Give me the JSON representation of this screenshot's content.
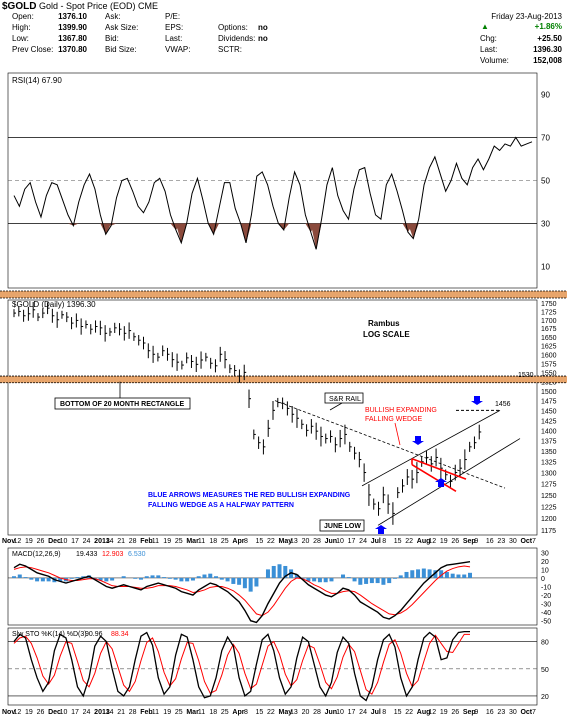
{
  "header": {
    "symbol": "$GOLD",
    "name": "Gold - Spot Price (EOD)",
    "exchange": "CME",
    "date": "Friday 23-Aug-2013",
    "change_pct": "+1.86%",
    "fields": [
      {
        "label": "Open:",
        "value": "1376.10"
      },
      {
        "label": "High:",
        "value": "1399.90"
      },
      {
        "label": "Low:",
        "value": "1367.80"
      },
      {
        "label": "Prev Close:",
        "value": "1370.80"
      }
    ],
    "mid_fields": [
      {
        "label": "Ask:",
        "value": ""
      },
      {
        "label": "Ask Size:",
        "value": ""
      },
      {
        "label": "Bid:",
        "value": ""
      },
      {
        "label": "Bid Size:",
        "value": ""
      }
    ],
    "mid2_fields": [
      {
        "label": "P/E:",
        "value": ""
      },
      {
        "label": "EPS:",
        "value": ""
      },
      {
        "label": "Last:",
        "value": ""
      },
      {
        "label": "VWAP:",
        "value": ""
      }
    ],
    "opt_fields": [
      {
        "label": "Options:",
        "value": "no"
      },
      {
        "label": "Dividends:",
        "value": "no"
      },
      {
        "label": "SCTR:",
        "value": ""
      }
    ],
    "right_fields": [
      {
        "label": "Chg:",
        "value": "+25.50"
      },
      {
        "label": "Last:",
        "value": "1396.30"
      },
      {
        "label": "Volume:",
        "value": "152,008"
      }
    ]
  },
  "chart_data": [
    {
      "type": "line",
      "panel": "rsi",
      "legend": "RSI(14) 67.90",
      "ylim": [
        0,
        100
      ],
      "yticks": [
        10,
        30,
        50,
        70,
        90
      ],
      "x": [
        0,
        2,
        4,
        6,
        8,
        10,
        12,
        14,
        16,
        18,
        20,
        22,
        24,
        26,
        28,
        30,
        32,
        34,
        36,
        38,
        40,
        42,
        44,
        46,
        48,
        50,
        52,
        54,
        56,
        58,
        60,
        62,
        64,
        66,
        68,
        70,
        72,
        74,
        76,
        78,
        80,
        82,
        84,
        86,
        88,
        90,
        92,
        94,
        96,
        98,
        100,
        102,
        104,
        106,
        108,
        110,
        112,
        114,
        116,
        118,
        120,
        122,
        124,
        126,
        128,
        130,
        132,
        134,
        136,
        138,
        140,
        142,
        144,
        146,
        148,
        150,
        152,
        154,
        156,
        158,
        160,
        162,
        164,
        166,
        168,
        170,
        172,
        174,
        176,
        178,
        180,
        182,
        184,
        186,
        188,
        190,
        192
      ],
      "values": [
        43,
        38,
        46,
        49,
        40,
        33,
        43,
        49,
        48,
        41,
        34,
        29,
        40,
        48,
        53,
        46,
        34,
        25,
        29,
        42,
        50,
        51,
        45,
        38,
        35,
        40,
        49,
        51,
        45,
        34,
        27,
        21,
        30,
        44,
        51,
        41,
        30,
        25,
        37,
        49,
        49,
        37,
        30,
        21,
        34,
        52,
        54,
        48,
        38,
        30,
        27,
        42,
        54,
        48,
        34,
        26,
        18,
        32,
        48,
        56,
        43,
        36,
        32,
        46,
        55,
        56,
        44,
        34,
        32,
        48,
        53,
        45,
        36,
        26,
        23,
        32,
        48,
        56,
        61,
        53,
        45,
        50,
        58,
        51,
        48,
        56,
        60,
        55,
        60,
        66,
        64,
        67,
        66,
        70,
        66,
        67,
        68
      ],
      "x_period_days": 2
    },
    {
      "type": "bar",
      "panel": "price",
      "legend": "$GOLD (Daily) 1396.30",
      "title": "Rambus",
      "subtitle": "LOG SCALE",
      "ylim": [
        1165,
        1760
      ],
      "yticks": [
        1175,
        1200,
        1225,
        1250,
        1275,
        1300,
        1325,
        1350,
        1375,
        1400,
        1425,
        1450,
        1475,
        1500,
        1525,
        1550,
        1575,
        1600,
        1625,
        1650,
        1675,
        1700,
        1725,
        1750
      ],
      "xticks": [
        "Nov",
        "12",
        "19",
        "26",
        "Dec",
        "10",
        "17",
        "24",
        "2013",
        "14",
        "21",
        "28",
        "Feb",
        "11",
        "19",
        "25",
        "Mar",
        "11",
        "18",
        "25",
        "Apr",
        "8",
        "15",
        "22",
        "May",
        "13",
        "20",
        "28",
        "Jun",
        "10",
        "17",
        "24",
        "Jul",
        "8",
        "15",
        "22",
        "Aug",
        "12",
        "19",
        "26",
        "Sep",
        "9",
        "16",
        "23",
        "30",
        "Oct",
        "7"
      ],
      "closes": [
        1720,
        1725,
        1712,
        1718,
        1730,
        1708,
        1720,
        1735,
        1712,
        1700,
        1715,
        1708,
        1690,
        1698,
        1680,
        1686,
        1672,
        1680,
        1676,
        1660,
        1664,
        1676,
        1672,
        1660,
        1668,
        1650,
        1640,
        1632,
        1610,
        1600,
        1592,
        1610,
        1600,
        1585,
        1578,
        1570,
        1590,
        1580,
        1572,
        1584,
        1592,
        1575,
        1568,
        1600,
        1585,
        1560,
        1555,
        1540,
        1550,
        1480,
        1390,
        1370,
        1360,
        1405,
        1450,
        1470,
        1468,
        1455,
        1440,
        1430,
        1415,
        1400,
        1410,
        1398,
        1385,
        1380,
        1385,
        1365,
        1380,
        1390,
        1360,
        1345,
        1330,
        1300,
        1250,
        1230,
        1220,
        1250,
        1230,
        1210,
        1255,
        1270,
        1290,
        1285,
        1300,
        1325,
        1335,
        1320,
        1335,
        1310,
        1295,
        1280,
        1300,
        1310,
        1330,
        1360,
        1370,
        1396
      ],
      "annotations": {
        "resistance_label": "1530",
        "rectangle_label": "BOTTOM OF 20 MONTH RECTANGLE",
        "sr_rail": "S&R RAIL",
        "wedge_label_1": "BULLISH EXPANDING",
        "wedge_label_2": "FALLING WEDGE",
        "target": "1456",
        "note_1": "BLUE ARROWS MEASURES THE RED BULLISH EXPANDING",
        "note_2": "FALLING WEDGE AS A HALFWAY PATTERN",
        "june_low": "JUNE LOW"
      }
    },
    {
      "type": "area",
      "panel": "macd",
      "legend_name": "MACD(12,26,9)",
      "legend_values": [
        "19.433",
        "12.903",
        "6.530"
      ],
      "ylim": [
        -55,
        35
      ],
      "yticks": [
        -50,
        -40,
        -30,
        -20,
        -10,
        0,
        10,
        20,
        30
      ],
      "macd": [
        12,
        16,
        14,
        10,
        6,
        4,
        2,
        -2,
        -4,
        -6,
        -4,
        -2,
        0,
        2,
        -2,
        -6,
        -10,
        -12,
        -10,
        -8,
        -10,
        -12,
        -14,
        -10,
        -8,
        -6,
        -8,
        -10,
        -12,
        -16,
        -18,
        -20,
        -14,
        -10,
        -6,
        -8,
        -12,
        -16,
        -22,
        -28,
        -38,
        -50,
        -52,
        -44,
        -30,
        -18,
        -6,
        2,
        6,
        4,
        -2,
        -8,
        -12,
        -16,
        -20,
        -22,
        -18,
        -12,
        -14,
        -20,
        -28,
        -32,
        -36,
        -40,
        -46,
        -48,
        -44,
        -38,
        -30,
        -22,
        -14,
        -6,
        0,
        6,
        12,
        15,
        16,
        17,
        18,
        19
      ],
      "signal": [
        10,
        12,
        13,
        12,
        10,
        8,
        6,
        3,
        0,
        -2,
        -3,
        -3,
        -2,
        -1,
        -1,
        -3,
        -6,
        -9,
        -10,
        -10,
        -10,
        -11,
        -12,
        -12,
        -11,
        -9,
        -9,
        -9,
        -10,
        -12,
        -14,
        -17,
        -16,
        -14,
        -11,
        -10,
        -10,
        -12,
        -15,
        -20,
        -26,
        -34,
        -42,
        -44,
        -40,
        -32,
        -22,
        -12,
        -4,
        0,
        -1,
        -4,
        -8,
        -11,
        -15,
        -18,
        -18,
        -16,
        -15,
        -16,
        -20,
        -25,
        -30,
        -34,
        -38,
        -42,
        -43,
        -41,
        -37,
        -31,
        -24,
        -17,
        -10,
        -3,
        3,
        8,
        11,
        13,
        14,
        13
      ],
      "histogram": [
        2,
        4,
        1,
        -2,
        -4,
        -4,
        -4,
        -5,
        -4,
        -4,
        -1,
        1,
        2,
        3,
        -1,
        -3,
        -4,
        -3,
        0,
        2,
        0,
        -1,
        -2,
        2,
        3,
        3,
        1,
        -1,
        -2,
        -4,
        -4,
        -3,
        2,
        4,
        5,
        2,
        -2,
        -4,
        -7,
        -8,
        -12,
        -16,
        -10,
        0,
        10,
        14,
        16,
        14,
        10,
        4,
        -1,
        -4,
        -4,
        -5,
        -5,
        -4,
        0,
        4,
        1,
        -4,
        -8,
        -7,
        -6,
        -6,
        -8,
        -6,
        -1,
        3,
        7,
        9,
        10,
        11,
        10,
        9,
        9,
        7,
        5,
        4,
        4,
        6
      ]
    },
    {
      "type": "line",
      "panel": "slow_sto",
      "legend_name": "Slw STO %K(14) %D(3)",
      "legend_values": [
        "90.96",
        "88.34"
      ],
      "ylim": [
        10,
        95
      ],
      "yticks": [
        20,
        50,
        80
      ],
      "k": [
        80,
        88,
        84,
        60,
        40,
        25,
        35,
        70,
        88,
        84,
        60,
        30,
        20,
        40,
        75,
        86,
        80,
        50,
        25,
        20,
        30,
        60,
        86,
        90,
        76,
        40,
        22,
        30,
        65,
        88,
        85,
        60,
        30,
        18,
        20,
        40,
        70,
        85,
        75,
        40,
        20,
        25,
        55,
        82,
        88,
        70,
        40,
        22,
        30,
        62,
        85,
        80,
        55,
        30,
        20,
        35,
        68,
        85,
        78,
        45,
        20,
        15,
        30,
        60,
        82,
        88,
        74,
        40,
        20,
        30,
        60,
        84,
        90,
        85,
        60,
        62,
        82,
        90,
        91,
        91
      ],
      "d": [
        78,
        84,
        86,
        78,
        62,
        42,
        33,
        43,
        64,
        80,
        78,
        58,
        37,
        30,
        45,
        67,
        80,
        72,
        52,
        32,
        25,
        36,
        59,
        79,
        84,
        69,
        46,
        31,
        39,
        61,
        79,
        78,
        59,
        36,
        23,
        26,
        43,
        65,
        77,
        67,
        45,
        28,
        33,
        54,
        75,
        80,
        66,
        44,
        31,
        38,
        59,
        76,
        73,
        55,
        35,
        28,
        41,
        63,
        77,
        69,
        48,
        27,
        22,
        35,
        57,
        77,
        82,
        67,
        45,
        30,
        37,
        58,
        78,
        87,
        78,
        69,
        68,
        78,
        88,
        88
      ]
    }
  ],
  "x_axis_labels": [
    {
      "label": "Nov",
      "bold": true
    },
    {
      "label": "12"
    },
    {
      "label": "19"
    },
    {
      "label": "26"
    },
    {
      "label": "Dec",
      "bold": true
    },
    {
      "label": "10"
    },
    {
      "label": "17"
    },
    {
      "label": "24"
    },
    {
      "label": "2013",
      "bold": true
    },
    {
      "label": "14"
    },
    {
      "label": "21"
    },
    {
      "label": "28"
    },
    {
      "label": "Feb",
      "bold": true
    },
    {
      "label": "11"
    },
    {
      "label": "19"
    },
    {
      "label": "25"
    },
    {
      "label": "Mar",
      "bold": true
    },
    {
      "label": "11"
    },
    {
      "label": "18"
    },
    {
      "label": "25"
    },
    {
      "label": "Apr",
      "bold": true
    },
    {
      "label": "8"
    },
    {
      "label": "15"
    },
    {
      "label": "22"
    },
    {
      "label": "May",
      "bold": true
    },
    {
      "label": "13"
    },
    {
      "label": "20"
    },
    {
      "label": "28"
    },
    {
      "label": "Jun",
      "bold": true
    },
    {
      "label": "10"
    },
    {
      "label": "17"
    },
    {
      "label": "24"
    },
    {
      "label": "Jul",
      "bold": true
    },
    {
      "label": "8"
    },
    {
      "label": "15"
    },
    {
      "label": "22"
    },
    {
      "label": "Aug",
      "bold": true
    },
    {
      "label": "12"
    },
    {
      "label": "19"
    },
    {
      "label": "26"
    },
    {
      "label": "Sep",
      "bold": true
    },
    {
      "label": "9"
    },
    {
      "label": "16"
    },
    {
      "label": "23"
    },
    {
      "label": "30"
    },
    {
      "label": "Oct",
      "bold": true
    },
    {
      "label": "7"
    }
  ],
  "colors": {
    "resistance_band": "#e8a56b",
    "rsi_fill": "#8b4a3c",
    "wedge_red": "#ff0000",
    "arrow_blue": "#0000ff",
    "macd_hist": "#3a8fd6",
    "signal_red": "#ff0000",
    "up_green": "#008000"
  }
}
